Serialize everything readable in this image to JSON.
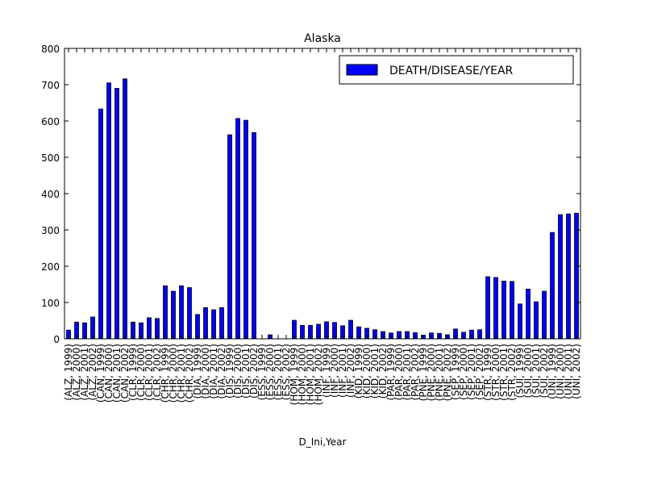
{
  "chart_data": {
    "type": "bar",
    "title": "Alaska",
    "xlabel": "D_Ini,Year",
    "ylabel": "",
    "ylim": [
      0,
      800
    ],
    "yticks": [
      0,
      100,
      200,
      300,
      400,
      500,
      600,
      700,
      800
    ],
    "grid": false,
    "legend": {
      "position": "top-right",
      "entries": [
        "DEATH/DISEASE/YEAR"
      ]
    },
    "colors": {
      "bar": "#0000ff",
      "edge": "#000000"
    },
    "categories": [
      "(ALZ, 1999)",
      "(ALZ, 2000)",
      "(ALZ, 2001)",
      "(ALZ, 2002)",
      "(CAN, 1999)",
      "(CAN, 2000)",
      "(CAN, 2001)",
      "(CAN, 2002)",
      "(CLR, 1999)",
      "(CLR, 2000)",
      "(CLR, 2001)",
      "(CLR, 2002)",
      "(CHR, 1999)",
      "(CHR, 2000)",
      "(CHR, 2001)",
      "(CHR, 2002)",
      "(DIA, 1999)",
      "(DIA, 2000)",
      "(DIA, 2001)",
      "(DIA, 2002)",
      "(DIS, 1999)",
      "(DIS, 2000)",
      "(DIS, 2001)",
      "(DIS, 2002)",
      "(ESS, 1999)",
      "(ESS, 2000)",
      "(ESS, 2001)",
      "(ESS, 2002)",
      "(HOM, 1999)",
      "(HOM, 2000)",
      "(HOM, 2001)",
      "(HOM, 2002)",
      "(INF, 1999)",
      "(INF, 2000)",
      "(INF, 2001)",
      "(INF, 2002)",
      "(KID, 1999)",
      "(KID, 2000)",
      "(KID, 2001)",
      "(KID, 2002)",
      "(PAR, 1999)",
      "(PAR, 2000)",
      "(PAR, 2001)",
      "(PAR, 2002)",
      "(PNE, 1999)",
      "(PNE, 2000)",
      "(PNE, 2001)",
      "(PNE, 2002)",
      "(SEP, 1999)",
      "(SEP, 2000)",
      "(SEP, 2001)",
      "(SEP, 2002)",
      "(STR, 1999)",
      "(STR, 2000)",
      "(STR, 2001)",
      "(STR, 2002)",
      "(SUI, 1999)",
      "(SUI, 2000)",
      "(SUI, 2001)",
      "(SUI, 2002)",
      "(UNI, 1999)",
      "(UNI, 2000)",
      "(UNI, 2001)",
      "(UNI, 2002)"
    ],
    "series": [
      {
        "name": "DEATH/DISEASE/YEAR",
        "values": [
          24,
          46,
          44,
          60,
          633,
          705,
          690,
          716,
          46,
          44,
          58,
          56,
          146,
          131,
          146,
          141,
          67,
          86,
          80,
          86,
          562,
          607,
          602,
          568,
          0,
          11,
          0,
          0,
          51,
          37,
          37,
          40,
          47,
          45,
          36,
          51,
          33,
          29,
          25,
          20,
          16,
          20,
          20,
          17,
          10,
          16,
          15,
          11,
          27,
          18,
          24,
          25,
          171,
          169,
          159,
          158,
          96,
          137,
          102,
          131,
          293,
          342,
          344,
          346
        ]
      }
    ]
  }
}
